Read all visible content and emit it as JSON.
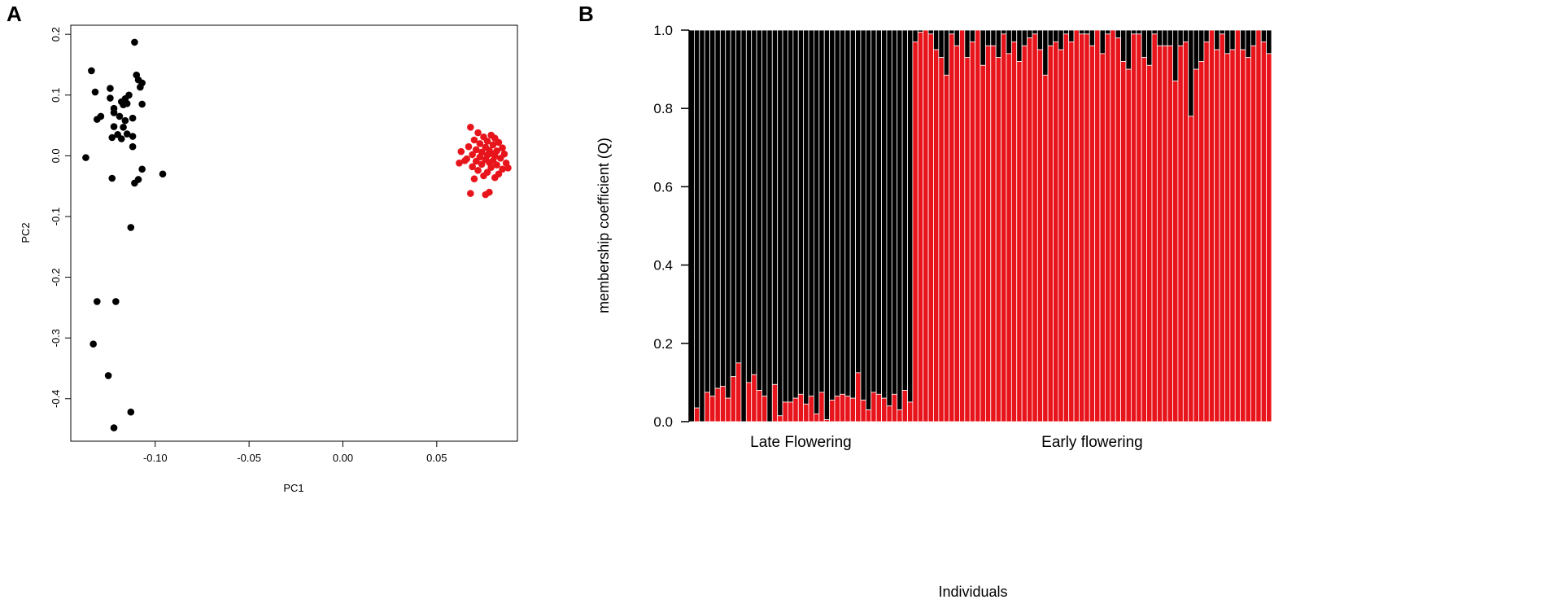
{
  "panels": {
    "a": {
      "letter": "A"
    },
    "b": {
      "letter": "B"
    }
  },
  "colors": {
    "cluster1": "#000000",
    "cluster2": "#e8141b"
  },
  "chart_data": [
    {
      "type": "scatter",
      "xlabel": "PC1",
      "ylabel": "PC2",
      "xlim": [
        -0.145,
        0.093
      ],
      "ylim": [
        -0.47,
        0.215
      ],
      "xticks": [
        -0.1,
        -0.05,
        0.0,
        0.05
      ],
      "xtick_labels": [
        "-0.10",
        "-0.05",
        "0.00",
        "0.05"
      ],
      "yticks": [
        0.2,
        0.1,
        0.0,
        -0.1,
        -0.2,
        -0.3,
        -0.4
      ],
      "ytick_labels": [
        "0.2",
        "0.1",
        "0.0",
        "-0.1",
        "-0.2",
        "-0.3",
        "-0.4"
      ],
      "grid": false,
      "series": [
        {
          "color": "#000000",
          "points": [
            [
              -0.111,
              0.187
            ],
            [
              -0.134,
              0.14
            ],
            [
              -0.132,
              0.105
            ],
            [
              -0.124,
              0.111
            ],
            [
              -0.11,
              0.133
            ],
            [
              -0.109,
              0.125
            ],
            [
              -0.107,
              0.12
            ],
            [
              -0.108,
              0.113
            ],
            [
              -0.114,
              0.1
            ],
            [
              -0.116,
              0.094
            ],
            [
              -0.118,
              0.089
            ],
            [
              -0.124,
              0.095
            ],
            [
              -0.122,
              0.078
            ],
            [
              -0.117,
              0.084
            ],
            [
              -0.115,
              0.086
            ],
            [
              -0.107,
              0.085
            ],
            [
              -0.122,
              0.071
            ],
            [
              -0.129,
              0.065
            ],
            [
              -0.131,
              0.06
            ],
            [
              -0.119,
              0.065
            ],
            [
              -0.116,
              0.058
            ],
            [
              -0.112,
              0.062
            ],
            [
              -0.122,
              0.048
            ],
            [
              -0.117,
              0.047
            ],
            [
              -0.12,
              0.035
            ],
            [
              -0.115,
              0.036
            ],
            [
              -0.112,
              0.032
            ],
            [
              -0.118,
              0.028
            ],
            [
              -0.123,
              0.03
            ],
            [
              -0.112,
              0.015
            ],
            [
              -0.137,
              -0.003
            ],
            [
              -0.107,
              -0.022
            ],
            [
              -0.096,
              -0.03
            ],
            [
              -0.123,
              -0.037
            ],
            [
              -0.109,
              -0.039
            ],
            [
              -0.111,
              -0.045
            ],
            [
              -0.113,
              -0.118
            ],
            [
              -0.131,
              -0.24
            ],
            [
              -0.121,
              -0.24
            ],
            [
              -0.133,
              -0.31
            ],
            [
              -0.125,
              -0.362
            ],
            [
              -0.113,
              -0.422
            ],
            [
              -0.122,
              -0.448
            ]
          ]
        },
        {
          "color": "#e8141b",
          "points": [
            [
              0.068,
              0.047
            ],
            [
              0.072,
              0.038
            ],
            [
              0.079,
              0.034
            ],
            [
              0.075,
              0.031
            ],
            [
              0.081,
              0.029
            ],
            [
              0.07,
              0.026
            ],
            [
              0.077,
              0.024
            ],
            [
              0.083,
              0.022
            ],
            [
              0.073,
              0.02
            ],
            [
              0.08,
              0.018
            ],
            [
              0.067,
              0.015
            ],
            [
              0.076,
              0.014
            ],
            [
              0.085,
              0.013
            ],
            [
              0.071,
              0.01
            ],
            [
              0.078,
              0.009
            ],
            [
              0.082,
              0.008
            ],
            [
              0.063,
              0.007
            ],
            [
              0.074,
              0.006
            ],
            [
              0.079,
              0.004
            ],
            [
              0.086,
              0.003
            ],
            [
              0.069,
              0.002
            ],
            [
              0.077,
              0.001
            ],
            [
              0.081,
              -0.001
            ],
            [
              0.073,
              -0.002
            ],
            [
              0.084,
              -0.004
            ],
            [
              0.066,
              -0.005
            ],
            [
              0.076,
              -0.006
            ],
            [
              0.08,
              -0.008
            ],
            [
              0.071,
              -0.009
            ],
            [
              0.078,
              -0.011
            ],
            [
              0.087,
              -0.012
            ],
            [
              0.062,
              -0.012
            ],
            [
              0.074,
              -0.014
            ],
            [
              0.082,
              -0.015
            ],
            [
              0.069,
              -0.018
            ],
            [
              0.079,
              -0.019
            ],
            [
              0.085,
              -0.022
            ],
            [
              0.072,
              -0.024
            ],
            [
              0.077,
              -0.027
            ],
            [
              0.083,
              -0.03
            ],
            [
              0.088,
              -0.02
            ],
            [
              0.075,
              -0.033
            ],
            [
              0.07,
              -0.038
            ],
            [
              0.081,
              -0.036
            ],
            [
              0.068,
              -0.062
            ],
            [
              0.076,
              -0.064
            ],
            [
              0.078,
              -0.06
            ],
            [
              0.065,
              -0.008
            ]
          ]
        }
      ]
    },
    {
      "type": "bar",
      "stacked": true,
      "xlabel": "Individuals",
      "ylabel": "membership coefficient (Q)",
      "ylim": [
        0.0,
        1.0
      ],
      "yticks": [
        0.0,
        0.2,
        0.4,
        0.6,
        0.8,
        1.0
      ],
      "ytick_labels": [
        "0.0",
        "0.2",
        "0.4",
        "0.6",
        "0.8",
        "1.0"
      ],
      "group_labels": [
        {
          "label": "Late Flowering",
          "count": 43
        },
        {
          "label": "Early flowering",
          "count": 69
        }
      ],
      "series": [
        {
          "color": "#e8141b",
          "values": [
            0.0,
            0.035,
            0.0,
            0.075,
            0.065,
            0.085,
            0.09,
            0.06,
            0.115,
            0.15,
            0.0,
            0.1,
            0.12,
            0.08,
            0.065,
            0.0,
            0.095,
            0.015,
            0.05,
            0.05,
            0.06,
            0.07,
            0.045,
            0.065,
            0.02,
            0.075,
            0.005,
            0.055,
            0.065,
            0.07,
            0.065,
            0.06,
            0.125,
            0.055,
            0.03,
            0.075,
            0.07,
            0.06,
            0.04,
            0.07,
            0.03,
            0.08,
            0.05,
            0.97,
            0.995,
            1.0,
            0.99,
            0.95,
            0.93,
            0.885,
            0.99,
            0.96,
            1.0,
            0.93,
            0.97,
            1.0,
            0.91,
            0.96,
            0.96,
            0.93,
            0.99,
            0.94,
            0.97,
            0.92,
            0.96,
            0.98,
            0.99,
            0.95,
            0.885,
            0.96,
            0.97,
            0.95,
            0.99,
            0.97,
            1.0,
            0.99,
            0.99,
            0.96,
            1.0,
            0.94,
            0.99,
            1.0,
            0.98,
            0.92,
            0.9,
            0.99,
            0.99,
            0.93,
            0.91,
            0.99,
            0.96,
            0.96,
            0.96,
            0.87,
            0.96,
            0.97,
            0.78,
            0.9,
            0.92,
            0.97,
            1.0,
            0.95,
            0.99,
            0.94,
            0.95,
            1.0,
            0.95,
            0.93,
            0.96,
            1.0,
            0.97,
            0.94
          ]
        },
        {
          "color": "#000000",
          "values": "1 - red"
        }
      ]
    }
  ]
}
